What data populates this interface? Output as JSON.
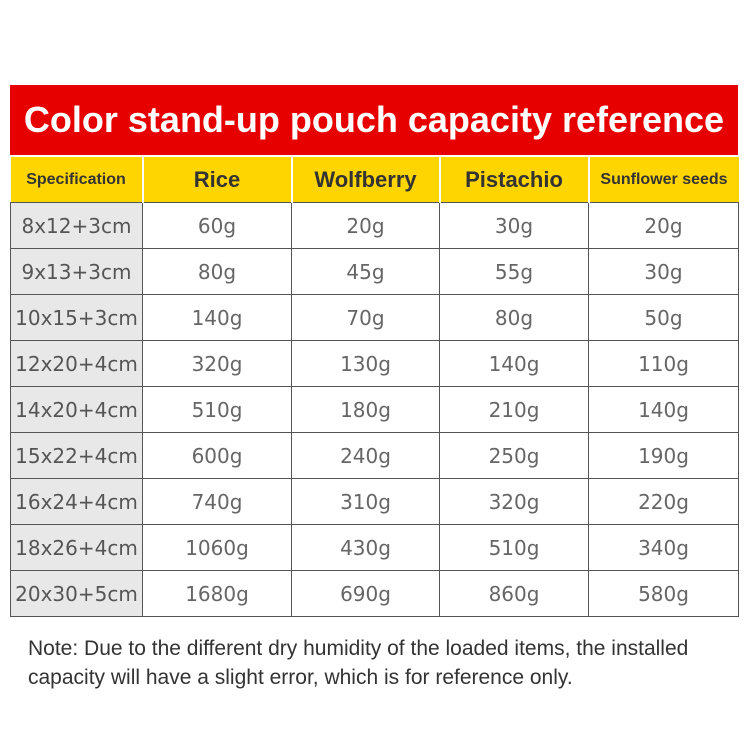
{
  "title": "Color stand-up pouch capacity reference",
  "headers": [
    "Specification",
    "Rice",
    "Wolfberry",
    "Pistachio",
    "Sunflower seeds"
  ],
  "rows": [
    [
      "8x12+3cm",
      "60g",
      "20g",
      "30g",
      "20g"
    ],
    [
      "9x13+3cm",
      "80g",
      "45g",
      "55g",
      "30g"
    ],
    [
      "10x15+3cm",
      "140g",
      "70g",
      "80g",
      "50g"
    ],
    [
      "12x20+4cm",
      "320g",
      "130g",
      "140g",
      "110g"
    ],
    [
      "14x20+4cm",
      "510g",
      "180g",
      "210g",
      "140g"
    ],
    [
      "15x22+4cm",
      "600g",
      "240g",
      "250g",
      "190g"
    ],
    [
      "16x24+4cm",
      "740g",
      "310g",
      "320g",
      "220g"
    ],
    [
      "18x26+4cm",
      "1060g",
      "430g",
      "510g",
      "340g"
    ],
    [
      "20x30+5cm",
      "1680g",
      "690g",
      "860g",
      "580g"
    ]
  ],
  "note": "Note: Due to the different dry humidity of the loaded items, the installed capacity will have a slight error, which is for reference only.",
  "colors": {
    "banner": "#e60000",
    "header": "#ffd500",
    "spec_column": "#e8e8e8"
  }
}
